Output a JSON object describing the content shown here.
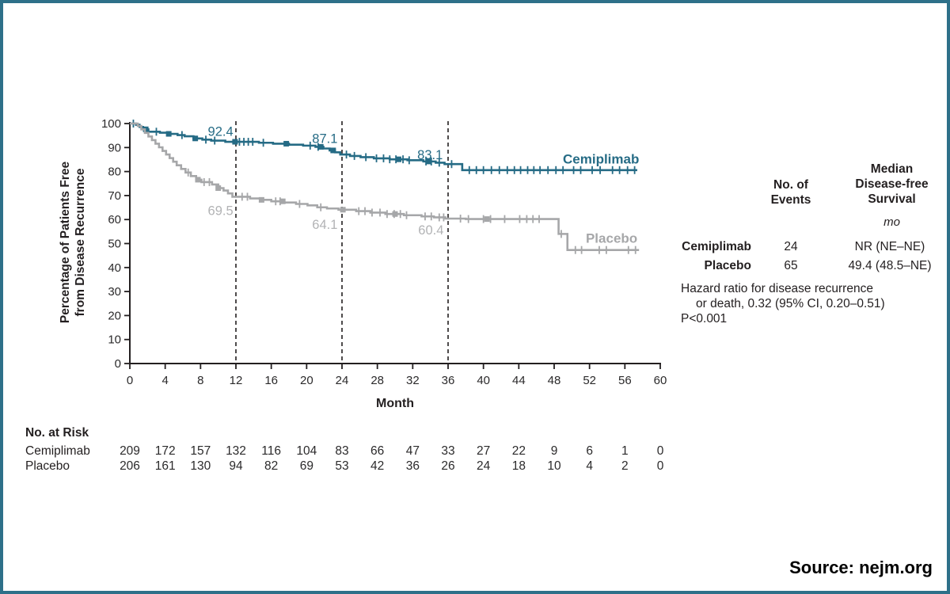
{
  "frame": {
    "border_color": "#2e7089",
    "background": "#ffffff"
  },
  "source_note": "Source: nejm.org",
  "chart_data": {
    "type": "line",
    "subtype": "kaplan-meier-step",
    "xlabel": "Month",
    "ylabel_lines": [
      "Percentage of Patients Free",
      "from Disease Recurrence"
    ],
    "xlim": [
      0,
      60
    ],
    "ylim": [
      0,
      100
    ],
    "x_ticks": [
      0,
      4,
      8,
      12,
      16,
      20,
      24,
      28,
      32,
      36,
      40,
      44,
      48,
      52,
      56,
      60
    ],
    "y_ticks": [
      0,
      10,
      20,
      30,
      40,
      50,
      60,
      70,
      80,
      90,
      100
    ],
    "dashed_vlines_months": [
      12,
      24,
      36
    ],
    "axis_color": "#231f20",
    "tick_text_color": "#2b2a2b",
    "legend_position": "on-plot-right",
    "grid": false,
    "series": [
      {
        "name": "Cemiplimab",
        "color": "#256b85",
        "steps": [
          [
            0,
            100
          ],
          [
            0.7,
            99.5
          ],
          [
            1.1,
            98.6
          ],
          [
            1.5,
            97.6
          ],
          [
            2.1,
            96.6
          ],
          [
            3.4,
            96.2
          ],
          [
            4.3,
            95.7
          ],
          [
            5.4,
            95.2
          ],
          [
            6.2,
            94.7
          ],
          [
            7.2,
            93.8
          ],
          [
            8.2,
            93.3
          ],
          [
            9.2,
            92.9
          ],
          [
            10.8,
            92.4
          ],
          [
            14.6,
            92.0
          ],
          [
            16.2,
            91.6
          ],
          [
            18.0,
            91.2
          ],
          [
            19.6,
            90.8
          ],
          [
            21.0,
            90.3
          ],
          [
            21.9,
            89.6
          ],
          [
            22.6,
            88.8
          ],
          [
            23.2,
            88.0
          ],
          [
            23.8,
            87.1
          ],
          [
            24.9,
            86.5
          ],
          [
            26.1,
            86.0
          ],
          [
            27.6,
            85.5
          ],
          [
            29.4,
            85.1
          ],
          [
            31.4,
            84.7
          ],
          [
            33.2,
            84.2
          ],
          [
            34.6,
            83.7
          ],
          [
            35.6,
            83.1
          ],
          [
            37.6,
            80.6
          ],
          [
            57.4,
            80.6
          ]
        ],
        "censor_months": [
          0.4,
          3.0,
          5.9,
          8.6,
          9.6,
          12.4,
          12.9,
          13.4,
          13.9,
          15.1,
          20.4,
          21.3,
          24.5,
          25.4,
          26.7,
          27.9,
          28.7,
          29.4,
          30.1,
          30.9,
          31.6,
          33.5,
          34.1,
          35.0,
          36.4,
          38.4,
          39.2,
          40.0,
          40.9,
          41.8,
          42.7,
          43.5,
          44.2,
          45.0,
          45.7,
          46.4,
          47.3,
          48.2,
          49.0,
          50.2,
          51.0,
          52.3,
          53.2,
          54.6,
          55.4,
          56.3,
          57.1
        ],
        "square_months": [
          1.8,
          4.4,
          7.4,
          11.9,
          17.7,
          21.6,
          23.0,
          30.4,
          33.8
        ],
        "label": {
          "text": "Cemiplimab",
          "month": 53.3,
          "value": 85.3
        },
        "annotations": [
          {
            "text": "92.4",
            "month": 11.7,
            "value": 96.5
          },
          {
            "text": "87.1",
            "month": 23.5,
            "value": 93.5
          },
          {
            "text": "83.1",
            "month": 35.4,
            "value": 86.8
          }
        ]
      },
      {
        "name": "Placebo",
        "color": "#a6a7a9",
        "annotation_color": "#b2b3b5",
        "steps": [
          [
            0,
            100
          ],
          [
            0.9,
            99.0
          ],
          [
            1.3,
            97.6
          ],
          [
            1.7,
            96.1
          ],
          [
            2.1,
            94.6
          ],
          [
            2.5,
            93.1
          ],
          [
            2.9,
            91.6
          ],
          [
            3.3,
            90.1
          ],
          [
            3.7,
            88.6
          ],
          [
            4.1,
            87.1
          ],
          [
            4.5,
            85.6
          ],
          [
            4.9,
            84.1
          ],
          [
            5.3,
            82.6
          ],
          [
            5.8,
            81.1
          ],
          [
            6.3,
            79.6
          ],
          [
            6.9,
            78.1
          ],
          [
            7.5,
            76.6
          ],
          [
            8.1,
            75.6
          ],
          [
            9.3,
            74.6
          ],
          [
            10.0,
            73.1
          ],
          [
            10.6,
            72.1
          ],
          [
            11.1,
            70.9
          ],
          [
            11.6,
            69.5
          ],
          [
            13.6,
            68.8
          ],
          [
            14.8,
            68.2
          ],
          [
            16.0,
            67.6
          ],
          [
            17.4,
            67.1
          ],
          [
            18.8,
            66.5
          ],
          [
            20.1,
            65.9
          ],
          [
            21.2,
            65.1
          ],
          [
            22.3,
            64.6
          ],
          [
            23.6,
            64.1
          ],
          [
            25.6,
            63.5
          ],
          [
            27.2,
            62.9
          ],
          [
            28.9,
            62.3
          ],
          [
            31.0,
            61.8
          ],
          [
            33.0,
            61.3
          ],
          [
            34.4,
            60.9
          ],
          [
            35.7,
            60.4
          ],
          [
            38.0,
            60.2
          ],
          [
            48.5,
            54.0
          ],
          [
            49.5,
            47.3
          ],
          [
            57.6,
            47.3
          ]
        ],
        "censor_months": [
          6.6,
          8.4,
          9.0,
          12.7,
          13.3,
          16.5,
          17.0,
          19.2,
          21.6,
          25.9,
          26.6,
          27.4,
          28.3,
          29.1,
          29.9,
          30.6,
          31.3,
          33.4,
          34.1,
          35.0,
          35.5,
          37.4,
          38.3,
          40.0,
          40.8,
          42.4,
          44.1,
          44.9,
          45.6,
          46.3,
          48.8,
          50.4,
          51.1,
          53.1,
          53.9,
          56.4,
          57.2
        ],
        "square_months": [
          7.7,
          10.0,
          14.9,
          17.3,
          24.1,
          30.0,
          40.4
        ],
        "label": {
          "text": "Placebo",
          "month": 54.5,
          "value": 52.3
        },
        "annotations": [
          {
            "text": "69.5",
            "month": 11.7,
            "value": 63.5
          },
          {
            "text": "64.1",
            "month": 23.5,
            "value": 57.8
          },
          {
            "text": "60.4",
            "month": 35.5,
            "value": 55.5
          }
        ]
      }
    ]
  },
  "stats_table": {
    "header_events_lines": [
      "No. of",
      "Events"
    ],
    "header_median_lines": [
      "Median",
      "Disease-free",
      "Survival"
    ],
    "unit": "mo",
    "rows": [
      {
        "label": "Cemiplimab",
        "events": "24",
        "median": "NR (NE–NE)"
      },
      {
        "label": "Placebo",
        "events": "65",
        "median": "49.4 (48.5–NE)"
      }
    ],
    "hazard_lines": [
      "Hazard ratio for disease recurrence",
      "or death, 0.32 (95% CI, 0.20–0.51)",
      "P<0.001"
    ]
  },
  "risk_table": {
    "title": "No. at Risk",
    "rows": [
      {
        "label": "Cemiplimab",
        "values": [
          209,
          172,
          157,
          132,
          116,
          104,
          83,
          66,
          47,
          33,
          27,
          22,
          9,
          6,
          1,
          0
        ]
      },
      {
        "label": "Placebo",
        "values": [
          206,
          161,
          130,
          94,
          82,
          69,
          53,
          42,
          36,
          26,
          24,
          18,
          10,
          4,
          2,
          0
        ]
      }
    ]
  }
}
